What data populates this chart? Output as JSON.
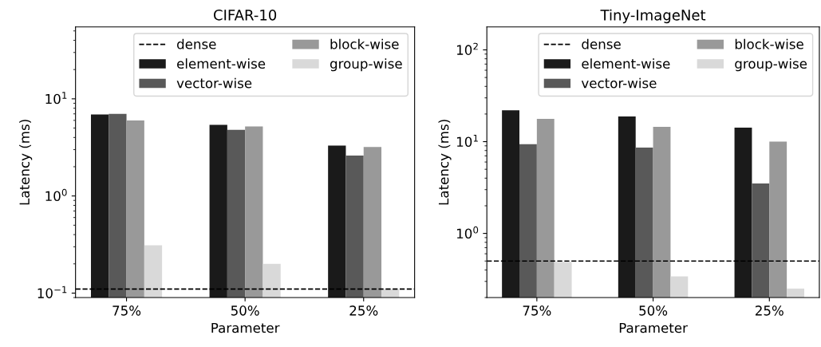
{
  "chart_data": [
    {
      "type": "bar",
      "title": "CIFAR-10",
      "xlabel": "Parameter",
      "ylabel": "Latency (ms)",
      "categories": [
        "75%",
        "50%",
        "25%"
      ],
      "log": "y",
      "ylim": [
        0.09,
        55
      ],
      "yticks": [
        {
          "value": 0.1,
          "label": "10$^{−1}$"
        },
        {
          "value": 1,
          "label": "10$^{0}$"
        },
        {
          "value": 10,
          "label": "10$^{1}$"
        }
      ],
      "legend": "top right",
      "grid": false,
      "series": [
        {
          "name": "element-wise",
          "color": "#1a1a1a",
          "values": [
            6.9,
            5.4,
            3.3
          ]
        },
        {
          "name": "vector-wise",
          "color": "#595959",
          "values": [
            7.0,
            4.8,
            2.6
          ]
        },
        {
          "name": "block-wise",
          "color": "#999999",
          "values": [
            6.0,
            5.2,
            3.2
          ]
        },
        {
          "name": "group-wise",
          "color": "#d9d9d9",
          "values": [
            0.31,
            0.2,
            0.11
          ]
        }
      ],
      "ref_lines": [
        {
          "axis": "y",
          "value": 0.11,
          "label": "dense",
          "color": "#000000",
          "line_style": "dashed"
        }
      ]
    },
    {
      "type": "bar",
      "title": "Tiny-ImageNet",
      "xlabel": "Parameter",
      "ylabel": "Latency (ms)",
      "categories": [
        "75%",
        "50%",
        "25%"
      ],
      "log": "y",
      "ylim": [
        0.2,
        178
      ],
      "yticks": [
        {
          "value": 1,
          "label": "10$^{0}$"
        },
        {
          "value": 10,
          "label": "10$^{1}$"
        },
        {
          "value": 100,
          "label": "10$^{2}$"
        }
      ],
      "legend": "top right",
      "grid": false,
      "series": [
        {
          "name": "element-wise",
          "color": "#1a1a1a",
          "values": [
            22,
            18.8,
            14.2
          ]
        },
        {
          "name": "vector-wise",
          "color": "#595959",
          "values": [
            9.4,
            8.6,
            3.5
          ]
        },
        {
          "name": "block-wise",
          "color": "#999999",
          "values": [
            17.7,
            14.5,
            10.0
          ]
        },
        {
          "name": "group-wise",
          "color": "#d9d9d9",
          "values": [
            0.49,
            0.34,
            0.25
          ]
        }
      ],
      "ref_lines": [
        {
          "axis": "y",
          "value": 0.5,
          "label": "dense",
          "color": "#000000",
          "line_style": "dashed"
        }
      ]
    }
  ]
}
